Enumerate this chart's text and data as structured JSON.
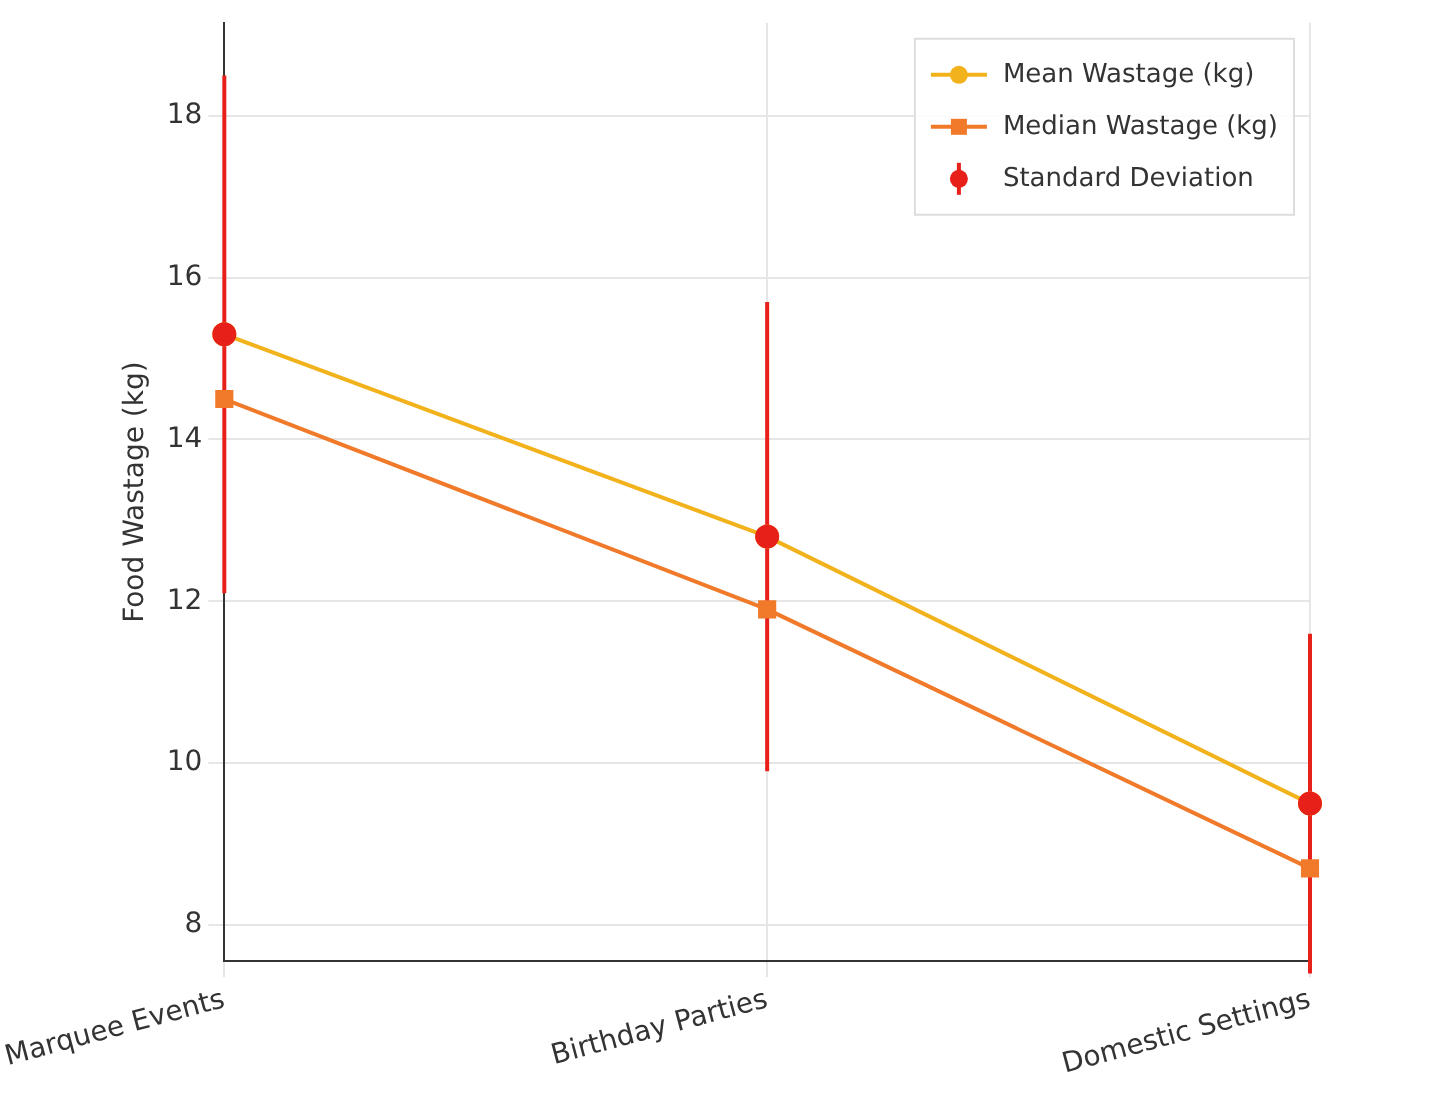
{
  "chart_data": {
    "type": "line",
    "ylabel": "Food Wastage (kg)",
    "categories": [
      "Marquee Events",
      "Birthday Parties",
      "Domestic Settings"
    ],
    "series": [
      {
        "name": "Mean Wastage (kg)",
        "type": "line",
        "color": "#f2b21c",
        "marker": "circle",
        "values": [
          15.3,
          12.8,
          9.5
        ]
      },
      {
        "name": "Median Wastage (kg)",
        "type": "line",
        "color": "#f07a2a",
        "marker": "square",
        "values": [
          14.5,
          11.9,
          8.7
        ]
      },
      {
        "name": "Standard Deviation",
        "type": "scatter",
        "color": "#e8201a",
        "marker": "circle",
        "values": [
          15.3,
          12.8,
          9.5
        ],
        "errors": [
          3.2,
          2.9,
          2.1
        ]
      }
    ],
    "ylim": [
      7.55,
      19.15
    ],
    "yticks": [
      8,
      10,
      12,
      14,
      16,
      18
    ],
    "grid": true,
    "legend": "top right"
  }
}
